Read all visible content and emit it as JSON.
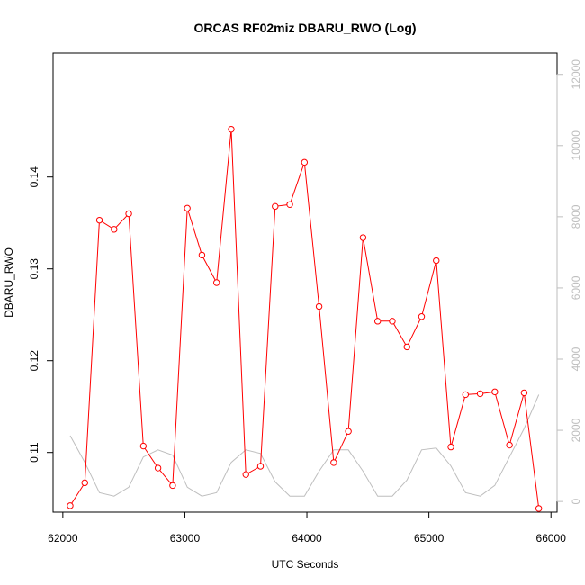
{
  "chart_data": {
    "type": "line",
    "title": "ORCAS RF02miz DBARU_RWO (Log)",
    "xlabel": "UTC Seconds",
    "ylabel": "DBARU_RWO",
    "xlim": [
      61920,
      66050
    ],
    "ylim": [
      0.1035,
      0.1535
    ],
    "y2lim": [
      -300,
      12600
    ],
    "x_ticks": [
      62000,
      63000,
      64000,
      65000,
      66000
    ],
    "y_ticks": [
      0.11,
      0.12,
      0.13,
      0.14
    ],
    "y2_ticks": [
      0,
      2000,
      4000,
      6000,
      8000,
      10000,
      12000
    ],
    "grid": false,
    "colors": {
      "primary": "#ff0000",
      "secondary": "#bebebe",
      "axis": "#000000"
    },
    "series": [
      {
        "axis": "left",
        "style": "line+points",
        "color": "#ff0000",
        "x": [
          62060,
          62180,
          62300,
          62420,
          62540,
          62660,
          62780,
          62900,
          63020,
          63140,
          63260,
          63380,
          63500,
          63620,
          63740,
          63860,
          63980,
          64100,
          64220,
          64340,
          64460,
          64580,
          64700,
          64820,
          64940,
          65060,
          65180,
          65300,
          65420,
          65540,
          65660,
          65780,
          65900
        ],
        "y": [
          0.1042,
          0.1067,
          0.1353,
          0.1343,
          0.136,
          0.1107,
          0.1083,
          0.1064,
          0.1366,
          0.1315,
          0.1285,
          0.1452,
          0.1076,
          0.1085,
          0.1368,
          0.137,
          0.1416,
          0.1259,
          0.1089,
          0.1123,
          0.1334,
          0.1243,
          0.1243,
          0.1215,
          0.1248,
          0.1309,
          0.1106,
          0.1163,
          0.1164,
          0.1166,
          0.1108,
          0.1165,
          0.1039
        ]
      },
      {
        "axis": "right",
        "style": "line",
        "color": "#bebebe",
        "x": [
          62060,
          62180,
          62300,
          62420,
          62540,
          62660,
          62780,
          62900,
          63020,
          63140,
          63260,
          63380,
          63500,
          63620,
          63740,
          63860,
          63980,
          64100,
          64220,
          64340,
          64460,
          64580,
          64700,
          64820,
          64940,
          65060,
          65180,
          65300,
          65420,
          65540,
          65660,
          65780,
          65900
        ],
        "y": [
          1850,
          1100,
          250,
          150,
          400,
          1250,
          1450,
          1300,
          400,
          150,
          250,
          1100,
          1450,
          1350,
          550,
          150,
          150,
          850,
          1450,
          1450,
          850,
          150,
          150,
          600,
          1450,
          1500,
          1000,
          250,
          150,
          450,
          1250,
          2050,
          3000
        ]
      }
    ]
  }
}
